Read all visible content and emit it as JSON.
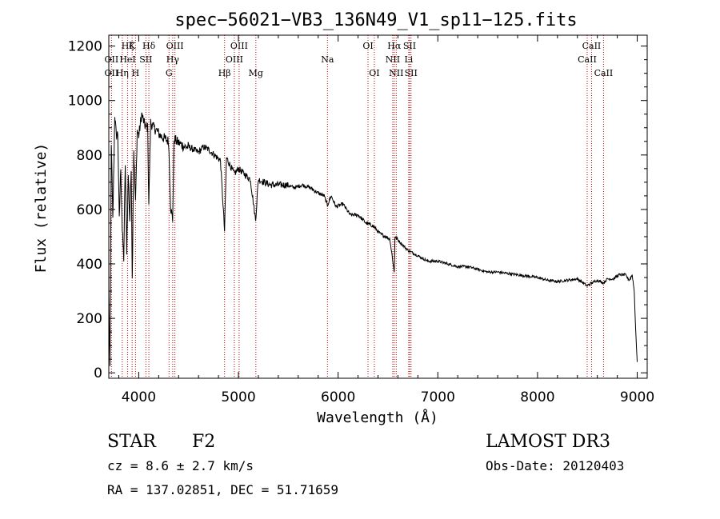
{
  "chart_data": {
    "type": "line",
    "title": "spec−56021−VB3_136N49_V1_sp11−125.fits",
    "xlabel": "Wavelength (Å)",
    "ylabel": "Flux (relative)",
    "xlim": [
      3700,
      9100
    ],
    "ylim": [
      -20,
      1240
    ],
    "x_ticks": [
      4000,
      5000,
      6000,
      7000,
      8000,
      9000
    ],
    "y_ticks": [
      0,
      200,
      400,
      600,
      800,
      1000,
      1200
    ],
    "grid": false,
    "series": [
      {
        "name": "flux",
        "x": [
          3700,
          3712,
          3725,
          3740,
          3760,
          3775,
          3790,
          3805,
          3820,
          3835,
          3850,
          3865,
          3880,
          3895,
          3910,
          3925,
          3935,
          3950,
          3968,
          3985,
          4000,
          4030,
          4060,
          4090,
          4101,
          4120,
          4150,
          4180,
          4220,
          4260,
          4300,
          4320,
          4340,
          4355,
          4380,
          4420,
          4460,
          4500,
          4550,
          4600,
          4650,
          4700,
          4760,
          4820,
          4861,
          4880,
          4920,
          4960,
          5000,
          5060,
          5120,
          5172,
          5200,
          5260,
          5320,
          5400,
          5480,
          5560,
          5640,
          5720,
          5800,
          5860,
          5893,
          5930,
          5980,
          6050,
          6120,
          6200,
          6280,
          6350,
          6420,
          6480,
          6520,
          6563,
          6570,
          6620,
          6700,
          6800,
          6900,
          7000,
          7100,
          7200,
          7300,
          7400,
          7500,
          7600,
          7700,
          7800,
          7900,
          8000,
          8100,
          8200,
          8300,
          8400,
          8498,
          8542,
          8600,
          8662,
          8700,
          8760,
          8820,
          8880,
          8920,
          8950,
          8970,
          8985,
          9000
        ],
        "y": [
          300,
          5,
          850,
          560,
          950,
          870,
          880,
          560,
          760,
          520,
          420,
          770,
          450,
          730,
          560,
          760,
          340,
          820,
          620,
          890,
          870,
          950,
          910,
          900,
          620,
          920,
          900,
          890,
          870,
          860,
          850,
          610,
          560,
          860,
          850,
          840,
          830,
          830,
          820,
          810,
          830,
          820,
          800,
          780,
          520,
          790,
          760,
          730,
          750,
          730,
          710,
          560,
          710,
          700,
          690,
          690,
          690,
          680,
          690,
          680,
          660,
          650,
          615,
          650,
          610,
          620,
          580,
          580,
          550,
          540,
          510,
          500,
          490,
          370,
          500,
          480,
          450,
          430,
          410,
          410,
          400,
          390,
          390,
          380,
          370,
          370,
          365,
          360,
          355,
          350,
          340,
          335,
          340,
          345,
          320,
          330,
          340,
          330,
          345,
          345,
          360,
          360,
          340,
          360,
          300,
          150,
          40
        ]
      }
    ],
    "lines": [
      {
        "label": "Hζ",
        "x": 3889,
        "row": 1
      },
      {
        "label": "K",
        "x": 3934,
        "row": 1
      },
      {
        "label": "Hδ",
        "x": 4102,
        "row": 1
      },
      {
        "label": "OIII",
        "x": 4363,
        "row": 1
      },
      {
        "label": "OIII",
        "x": 5007,
        "row": 1
      },
      {
        "label": "OI",
        "x": 6300,
        "row": 1
      },
      {
        "label": "Hα",
        "x": 6563,
        "row": 1
      },
      {
        "label": "SII",
        "x": 6717,
        "row": 1
      },
      {
        "label": "CaII",
        "x": 8542,
        "row": 1
      },
      {
        "label": "OII",
        "x": 3727,
        "row": 2
      },
      {
        "label": "HeI",
        "x": 3889,
        "row": 2
      },
      {
        "label": "SII",
        "x": 4072,
        "row": 2
      },
      {
        "label": "Hγ",
        "x": 4341,
        "row": 2
      },
      {
        "label": "OIII",
        "x": 4959,
        "row": 2
      },
      {
        "label": "Na",
        "x": 5893,
        "row": 2
      },
      {
        "label": "NII",
        "x": 6548,
        "row": 2
      },
      {
        "label": "Li",
        "x": 6708,
        "row": 2
      },
      {
        "label": "CaII",
        "x": 8498,
        "row": 2
      },
      {
        "label": "OII",
        "x": 3727,
        "row": 3
      },
      {
        "label": "Hη",
        "x": 3835,
        "row": 3
      },
      {
        "label": "H",
        "x": 3968,
        "row": 3
      },
      {
        "label": "G",
        "x": 4304,
        "row": 3
      },
      {
        "label": "Hβ",
        "x": 4861,
        "row": 3
      },
      {
        "label": "Mg",
        "x": 5175,
        "row": 3
      },
      {
        "label": "OI",
        "x": 6363,
        "row": 3
      },
      {
        "label": "NII",
        "x": 6583,
        "row": 3
      },
      {
        "label": "SII",
        "x": 6731,
        "row": 3
      },
      {
        "label": "CaII",
        "x": 8662,
        "row": 3
      }
    ]
  },
  "info": {
    "object_type": "STAR",
    "subclass": "F2",
    "survey": "LAMOST DR3",
    "redshift": "cz = 8.6 ± 2.7 km/s",
    "obs_date": "Obs-Date: 20120403",
    "coords": "RA = 137.02851, DEC =  51.71659"
  }
}
